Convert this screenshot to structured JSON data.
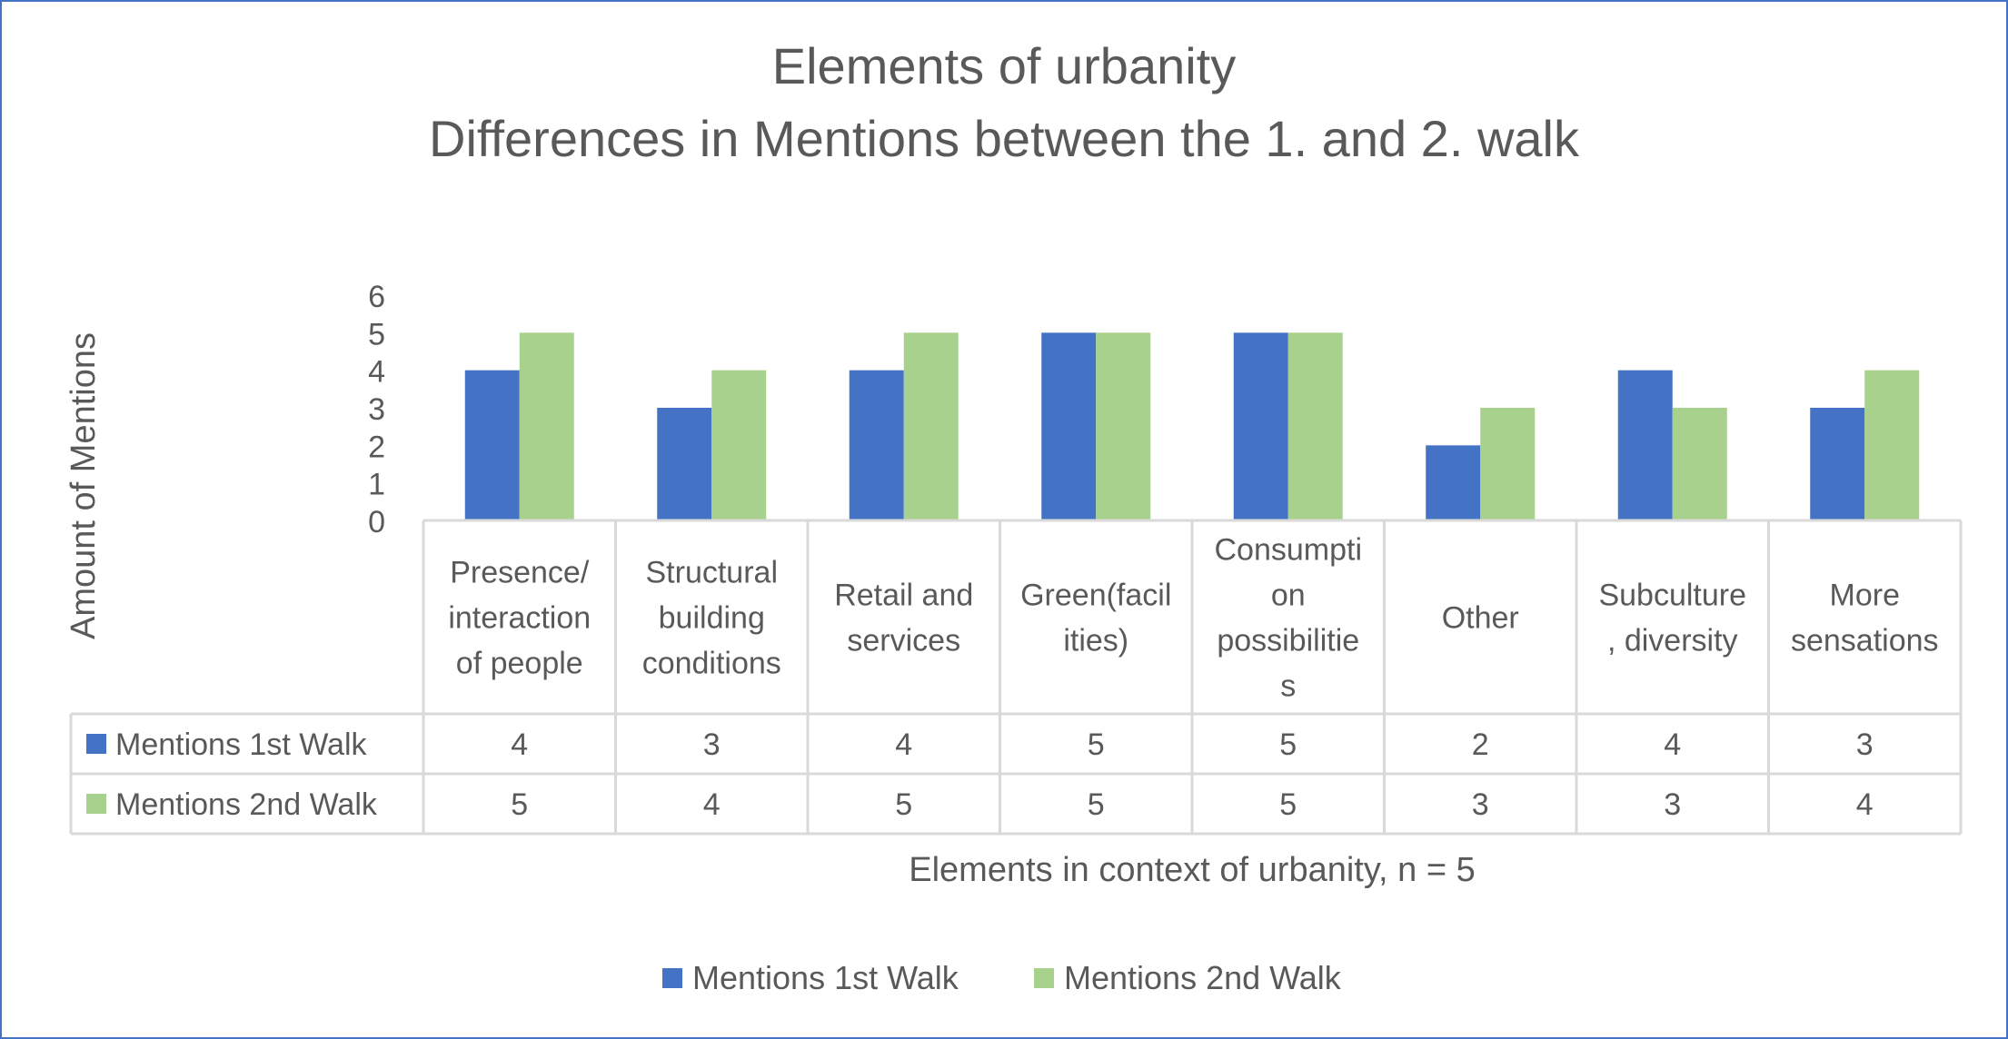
{
  "chart_data": {
    "type": "bar",
    "title": "Elements of urbanity",
    "subtitle": "Differences in Mentions between the 1. and 2. walk",
    "xlabel": "Elements in context of urbanity, n = 5",
    "ylabel": "Amount of Mentions",
    "ylim": [
      0,
      6
    ],
    "yticks": [
      "0",
      "1",
      "2",
      "3",
      "4",
      "5",
      "6"
    ],
    "grid": false,
    "legend": "bottom",
    "data_table": true,
    "categories": [
      "Presence/ interaction of people",
      "Structural building conditions",
      "Retail and services",
      "Green(facilities)",
      "Consumption possibilities",
      "Other",
      "Subculture, diversity",
      "More sensations"
    ],
    "category_label_lines": [
      [
        "Presence/",
        "interaction",
        "of people"
      ],
      [
        "Structural",
        "building",
        "conditions"
      ],
      [
        "Retail and",
        "services"
      ],
      [
        "Green(facil",
        "ities)"
      ],
      [
        "Consumpti",
        "on",
        "possibilitie",
        "s"
      ],
      [
        "Other"
      ],
      [
        "Subculture",
        ", diversity"
      ],
      [
        "More",
        "sensations"
      ]
    ],
    "series": [
      {
        "name": "Mentions 1st Walk",
        "color": "#4472C4",
        "values": [
          4,
          3,
          4,
          5,
          5,
          2,
          4,
          3
        ]
      },
      {
        "name": "Mentions 2nd Walk",
        "color": "#A9D18E",
        "values": [
          5,
          4,
          5,
          5,
          5,
          3,
          3,
          4
        ]
      }
    ]
  }
}
